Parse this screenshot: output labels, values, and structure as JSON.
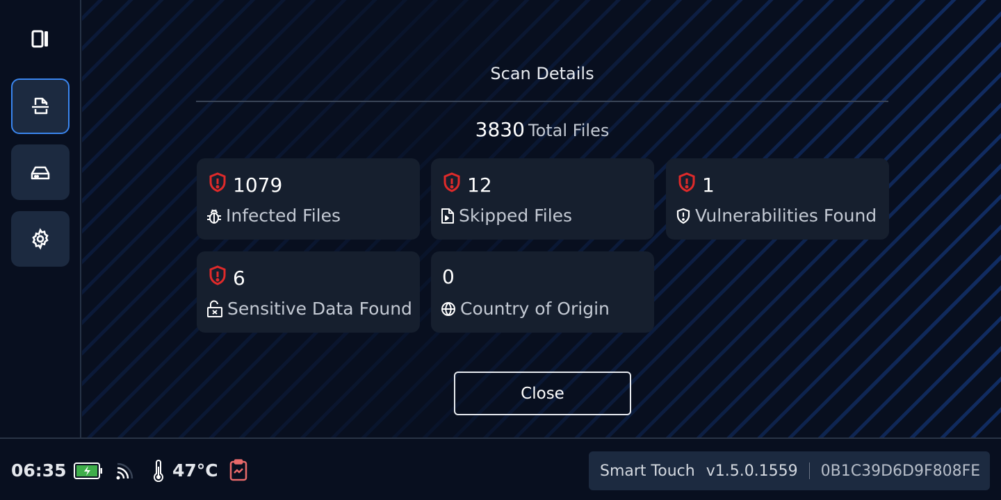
{
  "sidebar": {
    "items": [
      {
        "icon": "file-scan-icon",
        "active": true
      },
      {
        "icon": "drive-icon",
        "active": false
      },
      {
        "icon": "gear-icon",
        "active": false
      }
    ],
    "toggle_icon": "sidebar-toggle-icon",
    "active_color": "#3a86f0"
  },
  "dialog": {
    "title": "Scan Details",
    "total": {
      "value": "3830",
      "label": "Total Files"
    },
    "cards": [
      {
        "value": "1079",
        "label": "Infected Files",
        "alert": true,
        "icon": "bug-icon"
      },
      {
        "value": "12",
        "label": "Skipped Files",
        "alert": true,
        "icon": "file-skip-icon"
      },
      {
        "value": "1",
        "label": "Vulnerabilities Found",
        "alert": true,
        "icon": "shield-alert-icon"
      },
      {
        "value": "6",
        "label": "Sensitive Data Found",
        "alert": true,
        "icon": "unlocked-x-icon"
      },
      {
        "value": "0",
        "label": "Country of Origin",
        "alert": false,
        "icon": "globe-icon"
      }
    ],
    "close_label": "Close",
    "alert_color": "#e02a2a"
  },
  "status": {
    "time": "06:35",
    "battery": "charging",
    "temperature": "47°C",
    "app_name": "Smart Touch",
    "version": "v1.5.0.1559",
    "device_id": "0B1C39D6D9F808FE",
    "battery_color": "#3fae4a",
    "report_color": "#e86a6a"
  }
}
